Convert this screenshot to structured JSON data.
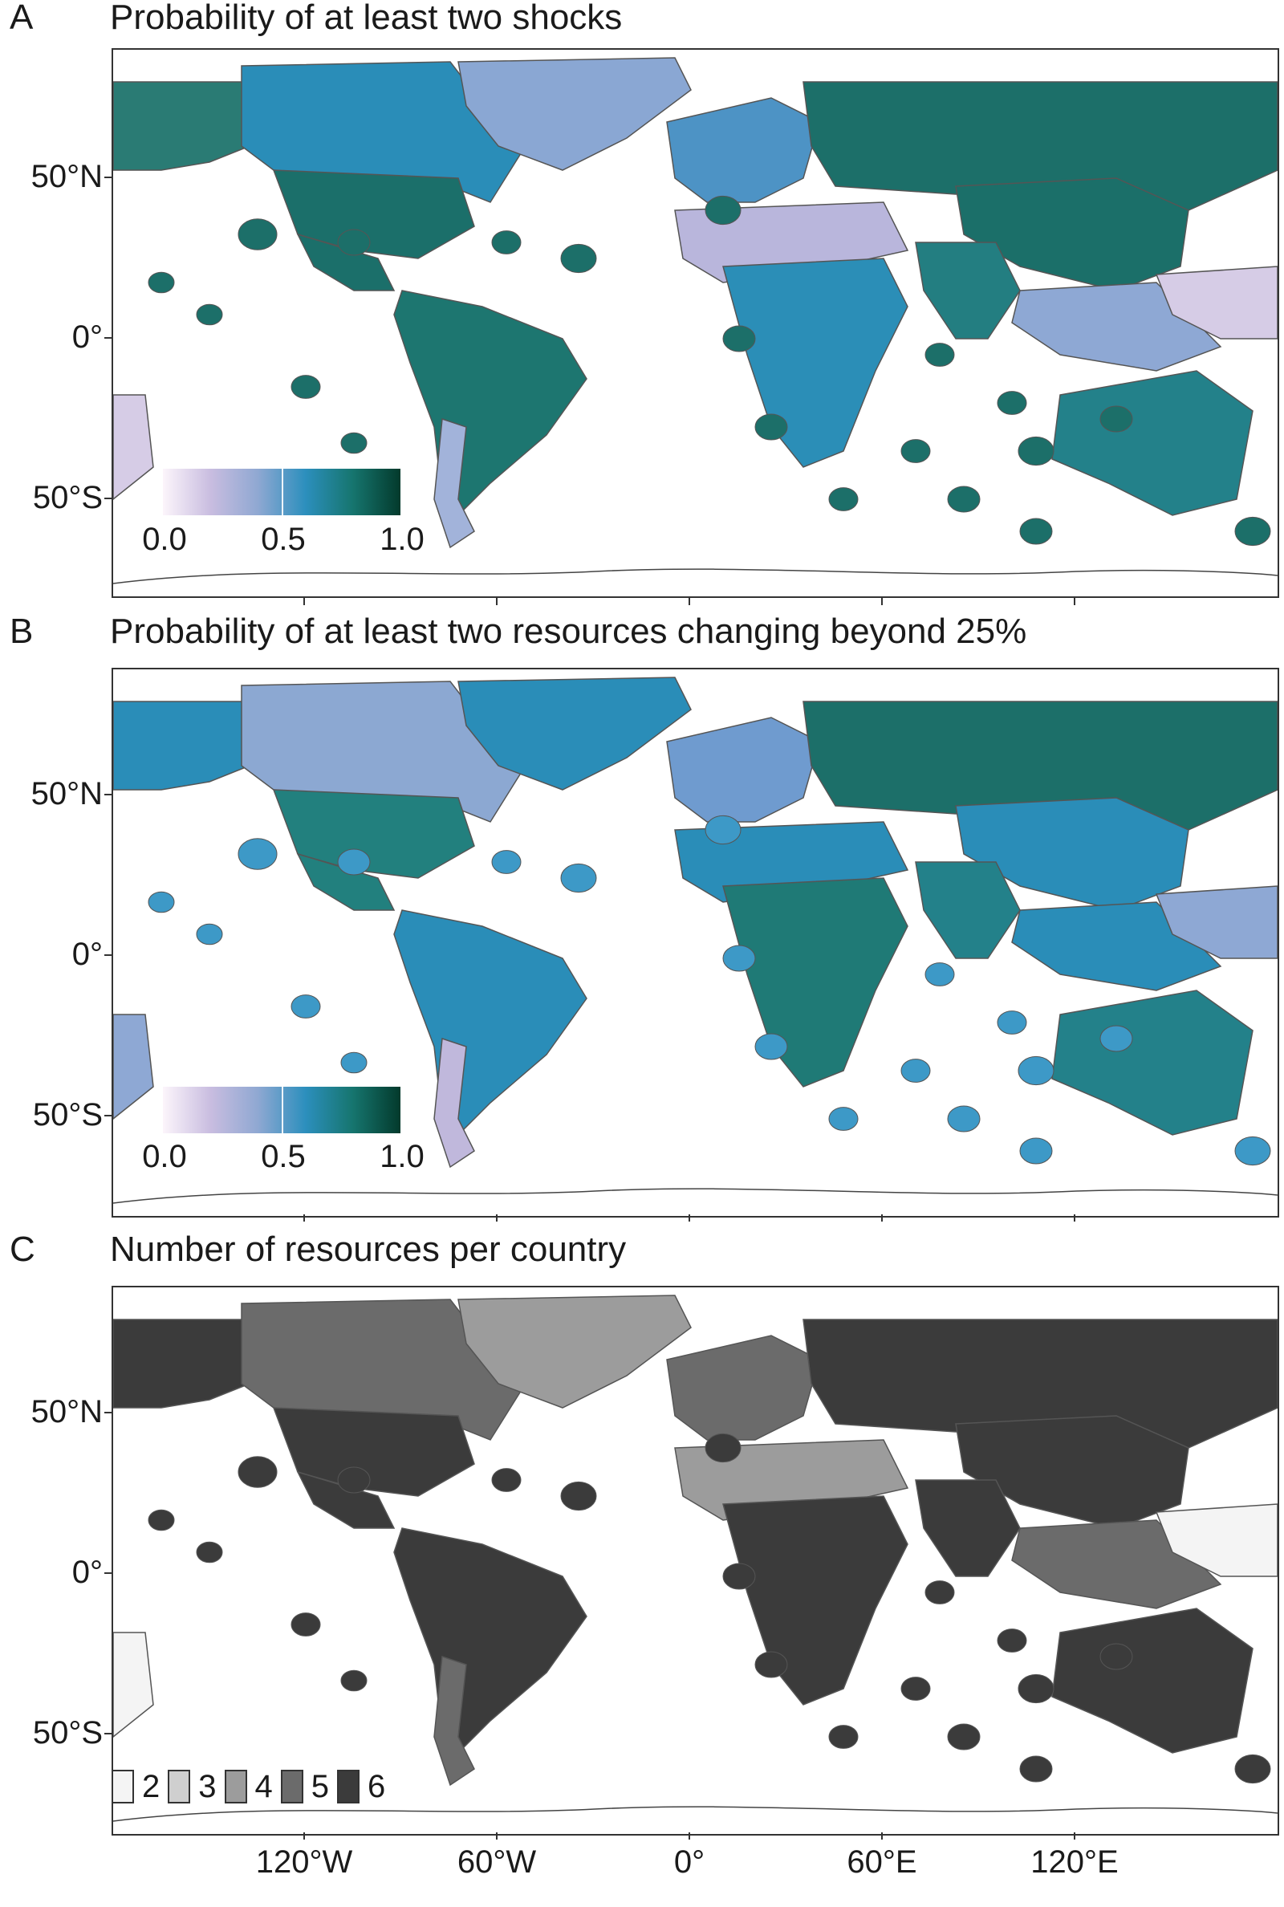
{
  "panels": [
    {
      "letter": "A",
      "title": "Probability of at least two shocks",
      "legend": {
        "type": "continuous",
        "labels": [
          "0.0",
          "0.5",
          "1.0"
        ],
        "colors": [
          "#fcf5fb",
          "#c9bde0",
          "#8fa8d2",
          "#2c8fbd",
          "#16756e",
          "#033a2c"
        ]
      }
    },
    {
      "letter": "B",
      "title": "Probability of at least two resources changing beyond 25%",
      "legend": {
        "type": "continuous",
        "labels": [
          "0.0",
          "0.5",
          "1.0"
        ],
        "colors": [
          "#fcf5fb",
          "#c9bde0",
          "#8fa8d2",
          "#2c8fbd",
          "#16756e",
          "#033a2c"
        ]
      }
    },
    {
      "letter": "C",
      "title": "Number of resources per country",
      "legend": {
        "type": "discrete",
        "items": [
          {
            "label": "2",
            "color": "#f4f4f4"
          },
          {
            "label": "3",
            "color": "#cfcfcf"
          },
          {
            "label": "4",
            "color": "#9c9c9c"
          },
          {
            "label": "5",
            "color": "#6b6b6b"
          },
          {
            "label": "6",
            "color": "#3b3b3b"
          }
        ]
      }
    }
  ],
  "axes": {
    "lat_labels": [
      "50°N",
      "0°",
      "50°S"
    ],
    "lon_labels": [
      "120°W",
      "60°W",
      "0°",
      "60°E",
      "120°E"
    ]
  },
  "map_colors": {
    "A": {
      "north_america": "#2a8db8",
      "greenland": "#8aa7d3",
      "usa": "#1b6f6a",
      "south_america": "#1d7670",
      "patagonia": "#a2b3da",
      "europe": "#4d93c5",
      "africa": "#2b8eb7",
      "africa_north": "#b9b6dc",
      "russia": "#1c6f69",
      "china": "#1b6f69",
      "india": "#237e81",
      "se_asia": "#8ea8d4",
      "australia": "#23818a",
      "alaska": "#2a7b74",
      "ocean_dots": "#1c6f69",
      "pacific_light": "#d6cce6"
    },
    "B": {
      "north_america": "#8ca8d2",
      "greenland": "#2a8db8",
      "usa": "#22807e",
      "south_america": "#2a8db8",
      "patagonia": "#c0b8dc",
      "europe": "#6f9bcf",
      "africa": "#1f7a76",
      "africa_north": "#2a8db8",
      "russia": "#1c6f69",
      "china": "#2a8db8",
      "india": "#23818a",
      "se_asia": "#2a8db8",
      "australia": "#23818a",
      "alaska": "#2a8db8",
      "ocean_dots": "#3d99c7",
      "pacific_light": "#8ea8d4"
    },
    "C": {
      "north_america": "#6b6b6b",
      "greenland": "#9c9c9c",
      "usa": "#3b3b3b",
      "south_america": "#3b3b3b",
      "patagonia": "#6b6b6b",
      "europe": "#6b6b6b",
      "africa": "#3b3b3b",
      "africa_north": "#9c9c9c",
      "russia": "#3b3b3b",
      "china": "#3b3b3b",
      "india": "#3b3b3b",
      "se_asia": "#6b6b6b",
      "australia": "#3b3b3b",
      "alaska": "#3b3b3b",
      "ocean_dots": "#3b3b3b",
      "pacific_light": "#f4f4f4"
    }
  }
}
